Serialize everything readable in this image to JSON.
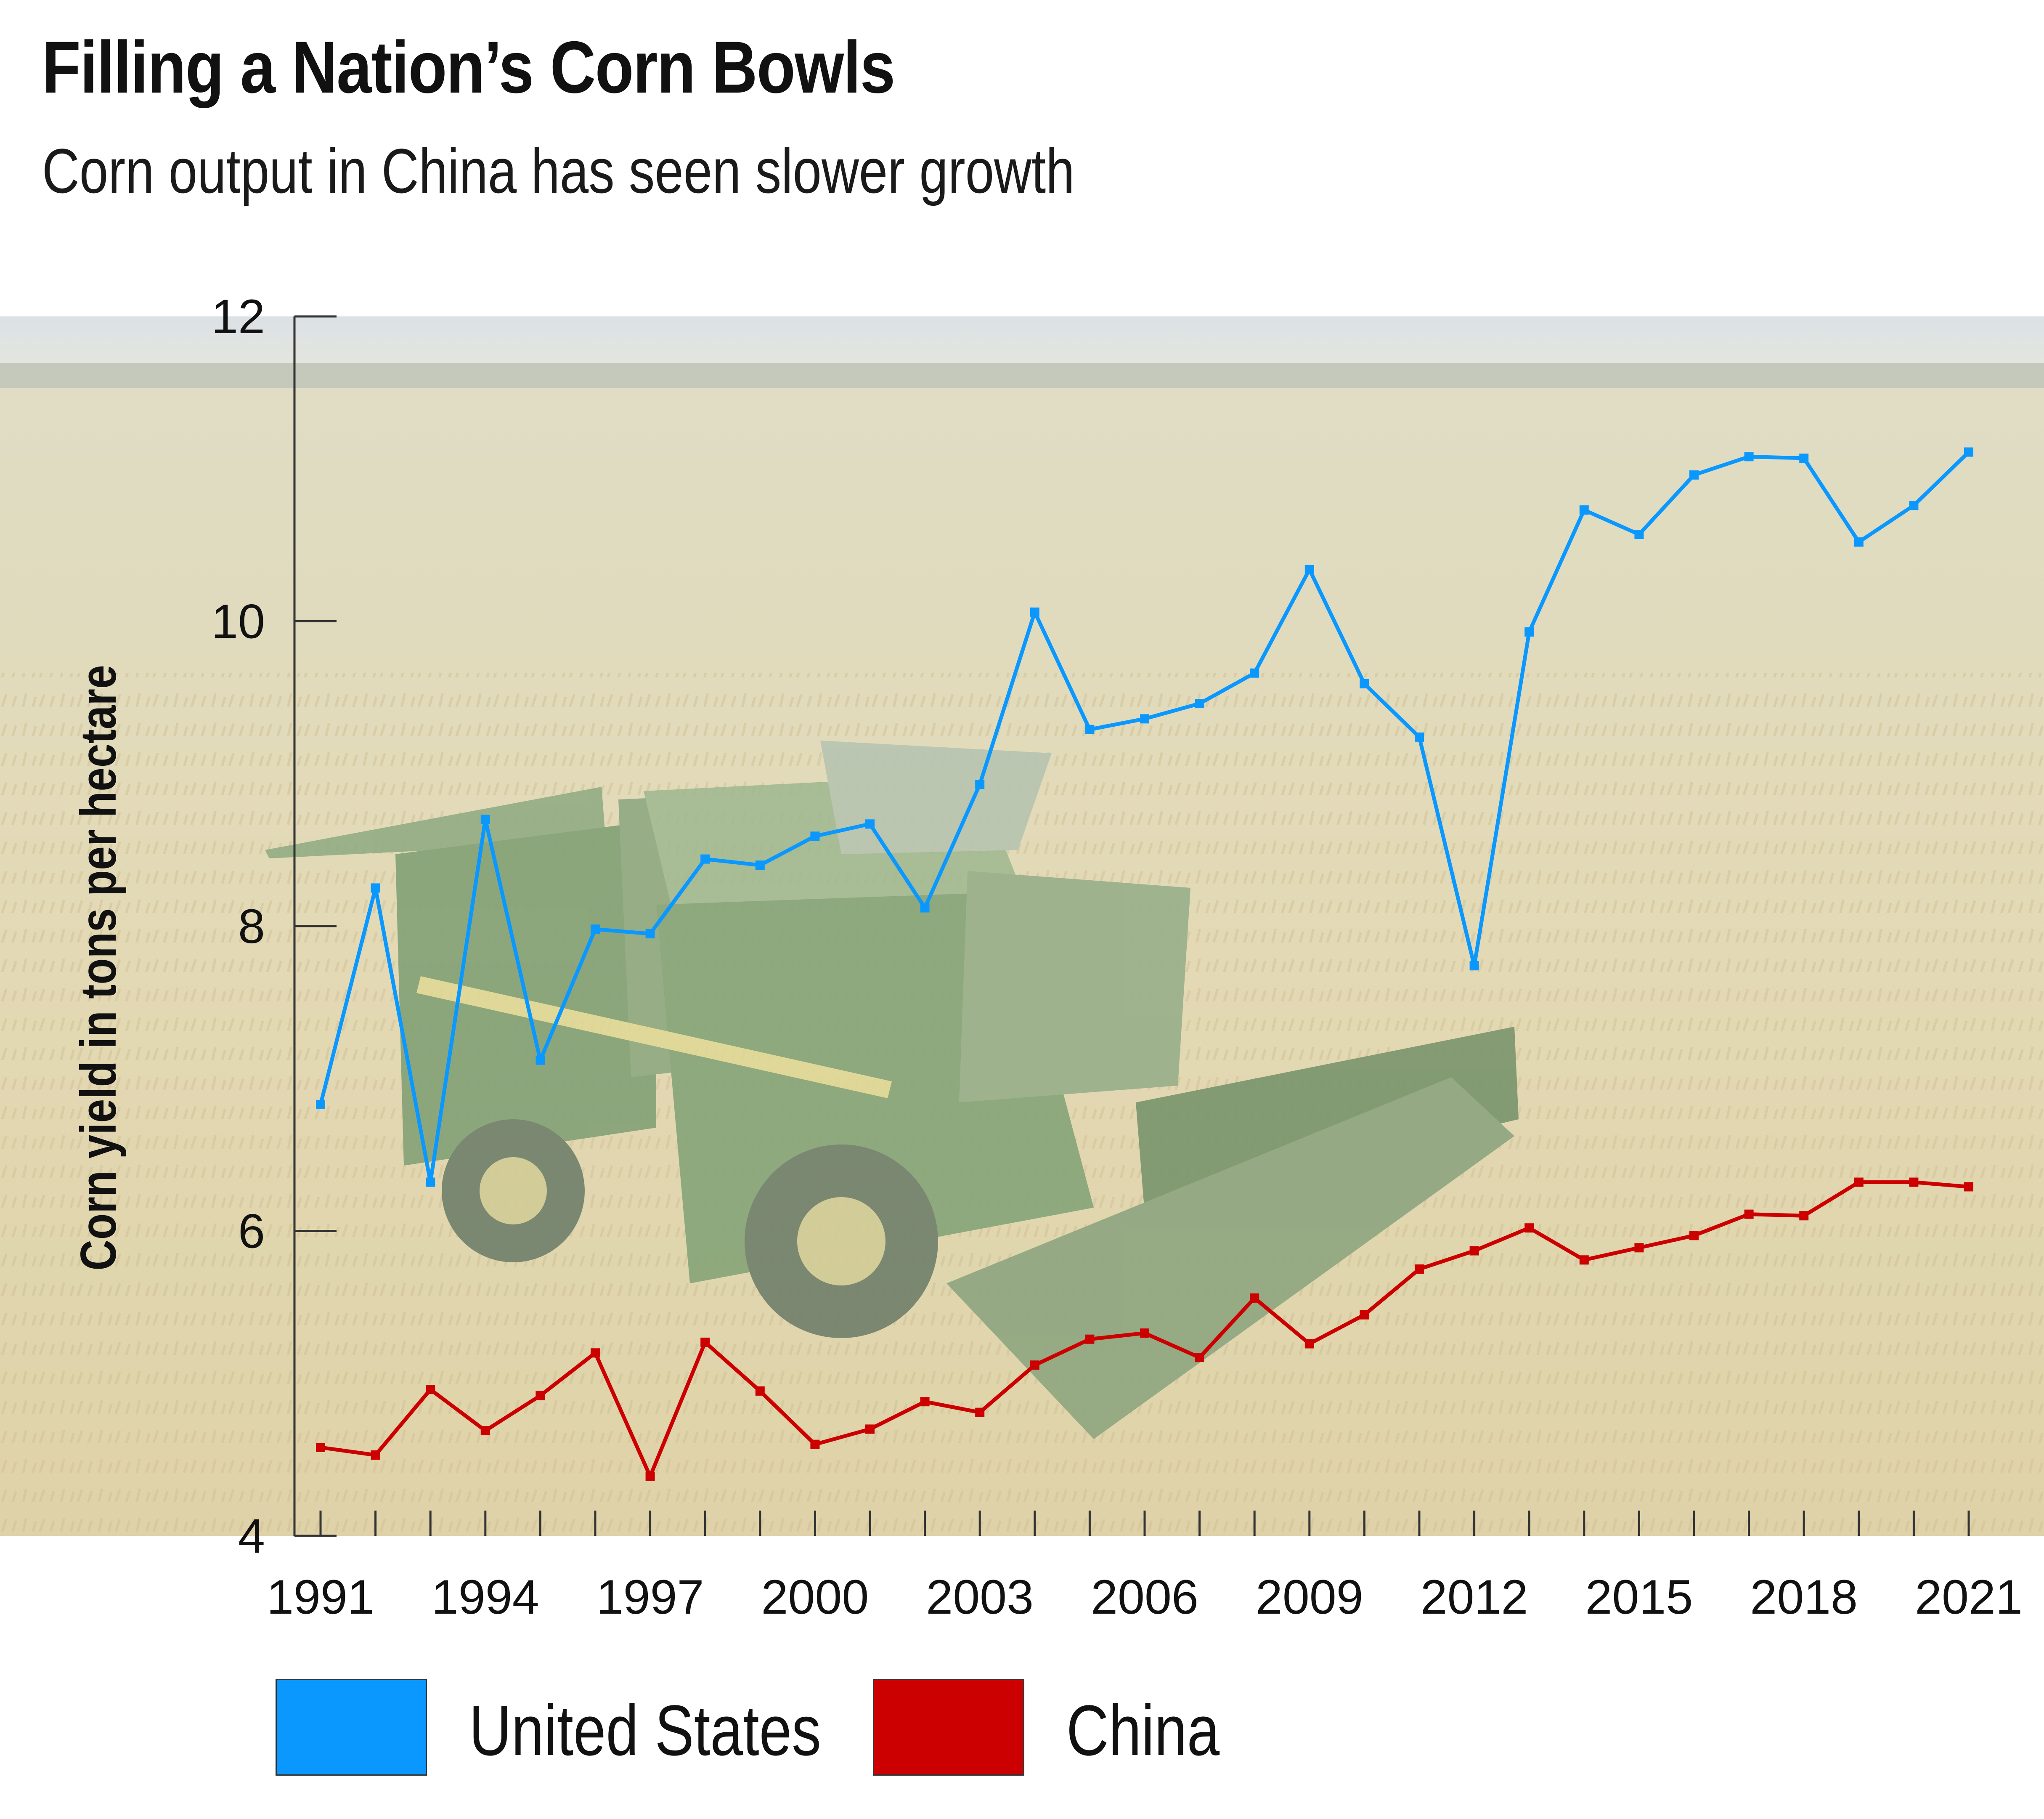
{
  "title": "Filling a Nation’s Corn Bowls",
  "subtitle": "Corn output in China has seen slower growth",
  "chart_data": {
    "type": "line",
    "title": "Filling a Nation’s Corn Bowls",
    "subtitle": "Corn output in China has seen slower growth",
    "ylabel": "Corn yield in tons per hectare",
    "xlabel": "",
    "ylim": [
      4,
      12
    ],
    "yticks": [
      4,
      6,
      8,
      10,
      12
    ],
    "xticks": [
      1991,
      1994,
      1997,
      2000,
      2003,
      2006,
      2009,
      2012,
      2015,
      2018,
      2021
    ],
    "x": [
      1991,
      1992,
      1993,
      1994,
      1995,
      1996,
      1997,
      1998,
      1999,
      2000,
      2001,
      2002,
      2003,
      2004,
      2005,
      2006,
      2007,
      2008,
      2009,
      2010,
      2011,
      2012,
      2013,
      2014,
      2015,
      2016,
      2017,
      2018,
      2019,
      2020,
      2021
    ],
    "grid": false,
    "legend_position": "bottom",
    "background": "photo of a green combine harvester in a golden field",
    "series": [
      {
        "name": "United States",
        "color": "#0a98ff",
        "values": [
          6.83,
          8.25,
          6.32,
          8.7,
          7.12,
          7.98,
          7.95,
          8.44,
          8.4,
          8.59,
          8.67,
          8.12,
          8.93,
          10.06,
          9.29,
          9.36,
          9.46,
          9.66,
          10.34,
          9.59,
          9.24,
          7.74,
          9.93,
          10.73,
          10.57,
          10.96,
          11.08,
          11.07,
          10.52,
          10.76,
          11.11
        ]
      },
      {
        "name": "China",
        "color": "#cc0000",
        "values": [
          4.58,
          4.53,
          4.96,
          4.69,
          4.92,
          5.2,
          4.39,
          5.27,
          4.95,
          4.6,
          4.7,
          4.88,
          4.81,
          5.12,
          5.29,
          5.33,
          5.17,
          5.56,
          5.26,
          5.45,
          5.75,
          5.87,
          6.02,
          5.81,
          5.89,
          5.97,
          6.11,
          6.1,
          6.32,
          6.32,
          6.29
        ]
      }
    ]
  }
}
